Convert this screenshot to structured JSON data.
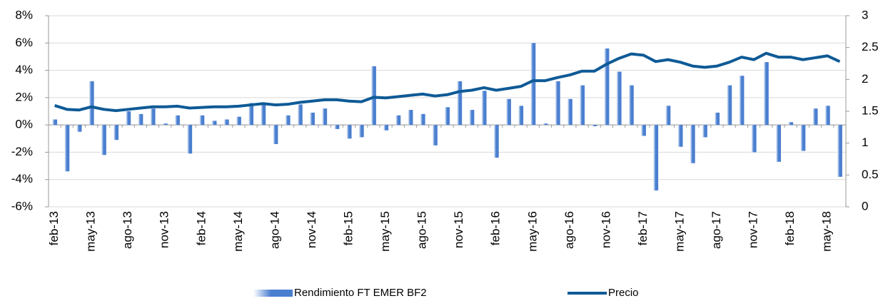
{
  "chart_data": {
    "type": "bar-line",
    "categories": [
      "feb-13",
      null,
      null,
      "may-13",
      null,
      null,
      "ago-13",
      null,
      null,
      "nov-13",
      null,
      null,
      "feb-14",
      null,
      null,
      "may-14",
      null,
      null,
      "ago-14",
      null,
      null,
      "nov-14",
      null,
      null,
      "feb-15",
      null,
      null,
      "may-15",
      null,
      null,
      "ago-15",
      null,
      null,
      "nov-15",
      null,
      null,
      "feb-16",
      null,
      null,
      "may-16",
      null,
      null,
      "ago-16",
      null,
      null,
      "nov-16",
      null,
      null,
      "feb-17",
      null,
      null,
      "may-17",
      null,
      null,
      "ago-17",
      null,
      null,
      "nov-17",
      null,
      null,
      "feb-18",
      null,
      null,
      "may-18",
      null
    ],
    "series": [
      {
        "name": "Rendimiento FT EMER BF2",
        "type": "bar",
        "color": "#4a7fd0",
        "axis": "y",
        "values": [
          0.4,
          -3.4,
          -0.5,
          3.2,
          -2.2,
          -1.1,
          1.0,
          0.8,
          1.2,
          0.1,
          0.7,
          -2.1,
          0.7,
          0.3,
          0.4,
          0.6,
          1.6,
          1.6,
          -1.4,
          0.7,
          1.5,
          0.9,
          1.2,
          -0.3,
          -1.0,
          -0.9,
          4.3,
          -0.4,
          0.7,
          1.1,
          0.8,
          -1.5,
          1.3,
          3.2,
          1.1,
          2.5,
          -2.4,
          1.9,
          1.4,
          6.0,
          0.1,
          3.2,
          1.9,
          2.9,
          -0.1,
          5.6,
          3.9,
          2.9,
          -0.8,
          -4.8,
          1.4,
          -1.6,
          -2.8,
          -0.9,
          0.9,
          2.9,
          3.6,
          -2.0,
          4.6,
          -2.7,
          0.2,
          -1.9,
          1.2,
          1.4,
          -3.8
        ]
      },
      {
        "name": "Precio",
        "type": "line",
        "color": "#0e5a96",
        "axis": "y2",
        "values": [
          1.59,
          1.53,
          1.52,
          1.57,
          1.53,
          1.51,
          1.53,
          1.55,
          1.57,
          1.57,
          1.58,
          1.55,
          1.56,
          1.57,
          1.57,
          1.58,
          1.6,
          1.62,
          1.6,
          1.61,
          1.64,
          1.66,
          1.68,
          1.68,
          1.66,
          1.65,
          1.72,
          1.71,
          1.73,
          1.75,
          1.77,
          1.74,
          1.76,
          1.81,
          1.83,
          1.87,
          1.83,
          1.86,
          1.89,
          1.98,
          1.98,
          2.03,
          2.07,
          2.13,
          2.13,
          2.24,
          2.33,
          2.4,
          2.38,
          2.28,
          2.31,
          2.27,
          2.21,
          2.19,
          2.21,
          2.27,
          2.35,
          2.31,
          2.41,
          2.35,
          2.35,
          2.31,
          2.34,
          2.37,
          2.28
        ]
      }
    ],
    "ylim": [
      -6,
      8
    ],
    "yticks": [
      {
        "value": -6,
        "label": "-6%"
      },
      {
        "value": -4,
        "label": "-4%"
      },
      {
        "value": -2,
        "label": "-2%"
      },
      {
        "value": 0,
        "label": "0%"
      },
      {
        "value": 2,
        "label": "2%"
      },
      {
        "value": 4,
        "label": "4%"
      },
      {
        "value": 6,
        "label": "6%"
      },
      {
        "value": 8,
        "label": "8%"
      }
    ],
    "y2lim": [
      0,
      3
    ],
    "y2ticks": [
      0,
      0.5,
      1,
      1.5,
      2,
      2.5,
      3
    ],
    "grid": true,
    "legend": "bottom"
  }
}
